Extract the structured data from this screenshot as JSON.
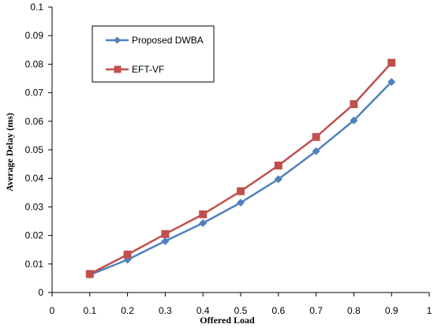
{
  "chart_data": {
    "type": "line",
    "title": "",
    "xlabel": "Offered Load",
    "ylabel": "Average Delay (ms)",
    "xlim": [
      0,
      1
    ],
    "ylim": [
      0,
      0.1
    ],
    "x_ticks": [
      "0",
      "0.1",
      "0.2",
      "0.3",
      "0.4",
      "0.5",
      "0.6",
      "0.7",
      "0.8",
      "0.9",
      "1"
    ],
    "y_ticks": [
      "0",
      "0.01",
      "0.02",
      "0.03",
      "0.04",
      "0.05",
      "0.06",
      "0.07",
      "0.08",
      "0.09",
      "0.1"
    ],
    "grid": false,
    "legend_position": "top-left",
    "x": [
      0.1,
      0.2,
      0.3,
      0.4,
      0.5,
      0.6,
      0.7,
      0.8,
      0.9
    ],
    "series": [
      {
        "name": "Proposed DWBA",
        "color": "#4F81BD",
        "marker": "diamond",
        "values": [
          0.0062,
          0.0115,
          0.018,
          0.0243,
          0.0315,
          0.0397,
          0.0495,
          0.0603,
          0.0738
        ]
      },
      {
        "name": "EFT-VF",
        "color": "#C0504D",
        "marker": "square",
        "values": [
          0.0065,
          0.0133,
          0.0205,
          0.0274,
          0.0355,
          0.0445,
          0.0545,
          0.066,
          0.0805
        ]
      }
    ]
  }
}
